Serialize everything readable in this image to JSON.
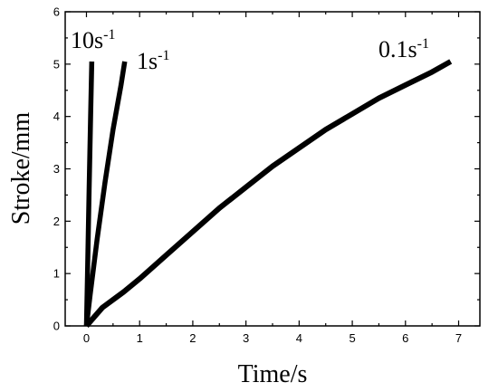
{
  "chart_data": {
    "type": "line",
    "xlabel": "Time/s",
    "ylabel": "Stroke/mm",
    "xlim": [
      -0.4,
      7.4
    ],
    "ylim": [
      0,
      6
    ],
    "xticks": [
      "0",
      "1",
      "2",
      "3",
      "4",
      "5",
      "6",
      "7"
    ],
    "yticks": [
      "0",
      "1",
      "2",
      "3",
      "4",
      "5",
      "6"
    ],
    "grid": false,
    "series": [
      {
        "name_main": "10s",
        "name_exp": "-1",
        "color": "#000000",
        "x": [
          0,
          0.02,
          0.05,
          0.08,
          0.1
        ],
        "y": [
          0,
          1.0,
          2.6,
          4.1,
          5.05
        ]
      },
      {
        "name_main": "1s",
        "name_exp": "-1",
        "color": "#000000",
        "x": [
          0,
          0.07,
          0.2,
          0.35,
          0.5,
          0.65,
          0.72
        ],
        "y": [
          0,
          0.6,
          1.65,
          2.75,
          3.75,
          4.6,
          5.05
        ]
      },
      {
        "name_main": "0.1s",
        "name_exp": "-1",
        "color": "#000000",
        "x": [
          0,
          0.3,
          0.7,
          1.0,
          1.5,
          2.0,
          2.5,
          3.0,
          3.5,
          4.0,
          4.5,
          5.0,
          5.5,
          6.0,
          6.5,
          6.85
        ],
        "y": [
          0,
          0.35,
          0.65,
          0.9,
          1.35,
          1.8,
          2.25,
          2.65,
          3.05,
          3.4,
          3.75,
          4.05,
          4.35,
          4.6,
          4.85,
          5.05
        ]
      }
    ]
  }
}
